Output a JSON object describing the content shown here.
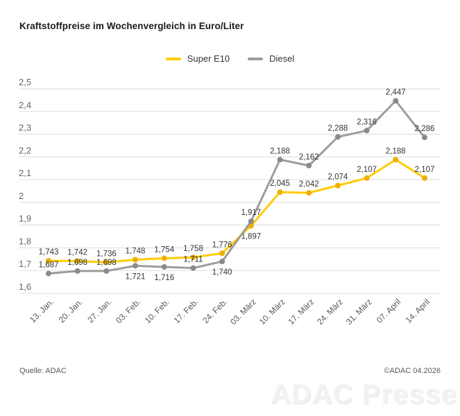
{
  "title": "Kraftstoffpreise im Wochenvergleich in Euro/Liter",
  "legend_items": [
    {
      "label": "Super E10",
      "color": "#FFCC00"
    },
    {
      "label": "Diesel",
      "color": "#9C9C9C"
    }
  ],
  "footer": {
    "source": "Quelle: ADAC",
    "copyright": "©ADAC 04.2026",
    "watermark": "ADAC Presse"
  },
  "chart_data": {
    "type": "line",
    "title": "Kraftstoffpreise im Wochenvergleich in Euro/Liter",
    "xlabel": "",
    "ylabel": "Euro/Liter",
    "grid": true,
    "legend_position": "top-center",
    "ylim": [
      1.6,
      2.5
    ],
    "yticks": [
      {
        "v": 2.5,
        "label": "2,5"
      },
      {
        "v": 2.4,
        "label": "2,4"
      },
      {
        "v": 2.3,
        "label": "2,3"
      },
      {
        "v": 2.2,
        "label": "2,2"
      },
      {
        "v": 2.1,
        "label": "2,1"
      },
      {
        "v": 2.0,
        "label": "2"
      },
      {
        "v": 1.9,
        "label": "1,9"
      },
      {
        "v": 1.8,
        "label": "1,8"
      },
      {
        "v": 1.7,
        "label": "1,7"
      },
      {
        "v": 1.6,
        "label": "1,6"
      }
    ],
    "categories": [
      "13. Jan.",
      "20. Jan.",
      "27. Jan.",
      "03. Feb.",
      "10. Feb.",
      "17. Feb.",
      "24. Feb.",
      "03. März",
      "10. März",
      "17. März",
      "24. März",
      "31. März",
      "07. April",
      "14. April"
    ],
    "series": [
      {
        "name": "Super E10",
        "color": "#FFCC00",
        "marker_color": "#EFAF00",
        "values": [
          1.743,
          1.742,
          1.736,
          1.748,
          1.754,
          1.758,
          1.776,
          1.897,
          2.045,
          2.042,
          2.074,
          2.107,
          2.188,
          2.107
        ],
        "labels": [
          "1,743",
          "1,742",
          "1,736",
          "1,748",
          "1,754",
          "1,758",
          "1,776",
          "1,897",
          "2,045",
          "2,042",
          "2,074",
          "2,107",
          "2,188",
          "2,107"
        ],
        "label_below": [
          7
        ]
      },
      {
        "name": "Diesel",
        "color": "#9C9C9C",
        "marker_color": "#8A8A8A",
        "values": [
          1.687,
          1.698,
          1.698,
          1.721,
          1.716,
          1.711,
          1.74,
          1.917,
          2.188,
          2.162,
          2.288,
          2.316,
          2.447,
          2.286
        ],
        "labels": [
          "1,687",
          "1,698",
          "1,698",
          "1,721",
          "1,716",
          "1,711",
          "1,740",
          "1,917",
          "2,188",
          "2,162",
          "2,288",
          "2,316",
          "2,447",
          "2,286"
        ],
        "label_below": [
          3,
          4,
          6
        ]
      }
    ],
    "colors": {
      "gridline": "#dddddd",
      "tick_label": "#666666",
      "data_label": "#333333",
      "x_label": "#595959"
    }
  }
}
